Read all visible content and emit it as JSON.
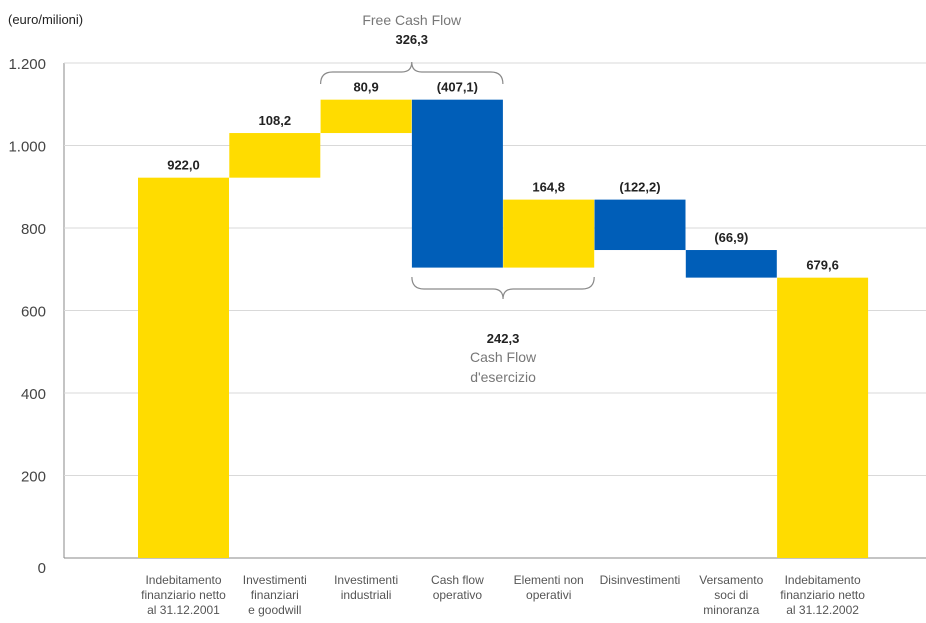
{
  "chart_data": {
    "type": "waterfall",
    "unit_label": "(euro/milioni)",
    "ylim": [
      0,
      1200
    ],
    "yticks": [
      0,
      200,
      400,
      600,
      800,
      1000,
      1200
    ],
    "ytick_labels": [
      "0",
      "200",
      "400",
      "600",
      "800",
      "1.000",
      "1.200"
    ],
    "categories": [
      [
        "Indebitamento",
        "finanziario netto",
        "al 31.12.2001"
      ],
      [
        "Investimenti",
        "finanziari",
        "e goodwill"
      ],
      [
        "Investimenti",
        "industriali"
      ],
      [
        "Cash flow",
        "operativo"
      ],
      [
        "Elementi non",
        "operativi"
      ],
      [
        "Disinvestimenti"
      ],
      [
        "Versamento",
        "soci di",
        "minoranza"
      ],
      [
        "Indebitamento",
        "finanziario netto",
        "al 31.12.2002"
      ]
    ],
    "bars": [
      {
        "base": 0,
        "top": 922.0,
        "color": "yellow",
        "label": "922,0"
      },
      {
        "base": 922.0,
        "top": 1030.2,
        "color": "yellow",
        "label": "108,2"
      },
      {
        "base": 1030.2,
        "top": 1111.1,
        "color": "yellow",
        "label": "80,9"
      },
      {
        "base": 704.0,
        "top": 1111.1,
        "color": "blue",
        "label": "(407,1)"
      },
      {
        "base": 704.0,
        "top": 868.8,
        "color": "blue_yellow_fix",
        "label": "164,8"
      },
      {
        "base": 746.6,
        "top": 868.8,
        "color": "blue",
        "label": "(122,2)"
      },
      {
        "base": 679.7,
        "top": 746.6,
        "color": "blue",
        "label": "(66,9)"
      },
      {
        "base": 0,
        "top": 679.6,
        "color": "yellow",
        "label": "679,6"
      }
    ],
    "annotations": {
      "free_cash_flow": {
        "title": "Free Cash Flow",
        "value": "326,3"
      },
      "cash_flow_esercizio": {
        "title_lines": [
          "Cash Flow",
          "d'esercizio"
        ],
        "value": "242,3"
      }
    },
    "colors": {
      "yellow": "#FFDC00",
      "blue": "#005EB8",
      "axis": "#888888",
      "grid": "#d9d9d9",
      "brace": "#8a8a8a"
    }
  }
}
